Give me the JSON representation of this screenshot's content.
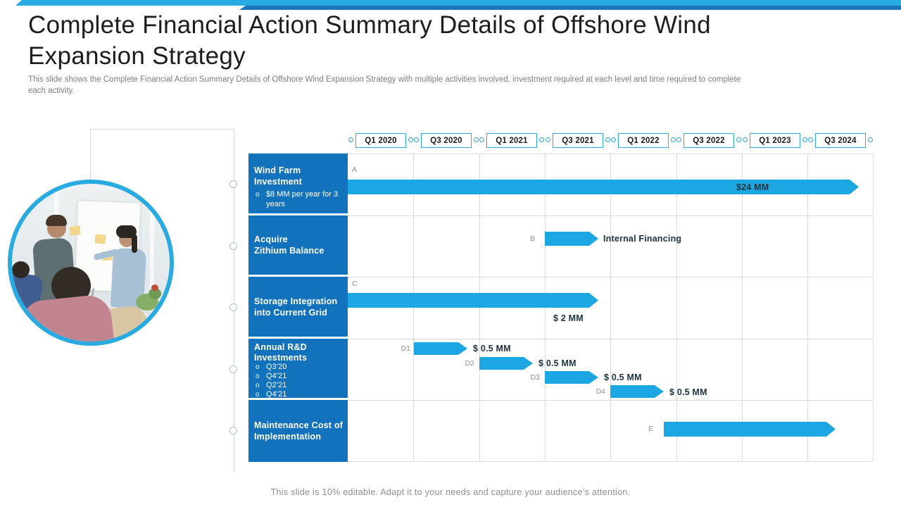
{
  "slide": {
    "title_line1": "Complete Financial Action Summary Details of Offshore Wind",
    "title_line2": "Expansion Strategy",
    "description": "This slide shows the Complete Financial Action Summary Details of Offshore Wind Expansion Strategy with multiple activities involved, investment required at each level and time required to complete each activity.",
    "footer_note": "This slide is 10% editable. Adapt it to your needs and capture your audience’s attention."
  },
  "colors": {
    "accent_cyan": "#29ABE2",
    "accent_dark_blue": "#1B75BB",
    "row_label_blue": "#1273BC",
    "bar_cyan": "#1CA7E2",
    "grid_gray": "#D9D9D9",
    "value_text_dark": "#1D3240",
    "muted_gray": "#7E7E7E"
  },
  "gantt": {
    "bullet_marker": "o",
    "quarters": [
      "Q1 2020",
      "Q3 2020",
      "Q1 2021",
      "Q3 2021",
      "Q1 2022",
      "Q3 2022",
      "Q1 2023",
      "Q3 2024"
    ],
    "rows": [
      {
        "title": "Wind Farm\nInvestment",
        "bullets": [
          "$8 MM  per year for 3 years"
        ]
      },
      {
        "title": "Acquire\nZithium Balance",
        "bullets": []
      },
      {
        "title": "Storage Integration\ninto Current Grid",
        "bullets": []
      },
      {
        "title": "Annual R&D\nInvestments",
        "bullets": [
          "Q3’20",
          "Q4’21",
          "Q2’21",
          "Q4’21"
        ]
      },
      {
        "title": "Maintenance Cost of\nImplementation",
        "bullets": []
      }
    ],
    "bars": [
      {
        "marker": "A",
        "value": "$24 MM"
      },
      {
        "marker": "B",
        "value": "Internal Financing"
      },
      {
        "marker": "C",
        "value": "$ 2 MM"
      },
      {
        "marker": "D1",
        "value": "$ 0.5 MM"
      },
      {
        "marker": "D2",
        "value": "$ 0.5 MM"
      },
      {
        "marker": "D3",
        "value": "$ 0.5 MM"
      },
      {
        "marker": "D4",
        "value": "$ 0.5 MM"
      },
      {
        "marker": "E",
        "value": ""
      }
    ]
  },
  "chart_data": {
    "type": "bar",
    "subtype": "gantt",
    "title": "Complete Financial Action Summary Details of Offshore Wind Expansion Strategy",
    "x_axis_quarters": [
      "Q1 2020",
      "Q3 2020",
      "Q1 2021",
      "Q3 2021",
      "Q1 2022",
      "Q3 2022",
      "Q1 2023",
      "Q3 2024"
    ],
    "tasks": [
      {
        "activity": "Wind Farm Investment ($8 MM per year for 3 years)",
        "marker": "A",
        "span": [
          "Q1 2020",
          "Q3 2024"
        ],
        "label": "$24 MM"
      },
      {
        "activity": "Acquire Zithium Balance",
        "marker": "B",
        "span": [
          "Q3 2021",
          "Q3 2021"
        ],
        "label": "Internal Financing"
      },
      {
        "activity": "Storage Integration into Current Grid",
        "marker": "C",
        "span": [
          "Q1 2020",
          "Q3 2021"
        ],
        "label": "$ 2 MM"
      },
      {
        "activity": "Annual R&D Investments",
        "marker": "D1",
        "span": [
          "Q3 2020",
          "Q3 2020"
        ],
        "label": "$ 0.5 MM"
      },
      {
        "activity": "Annual R&D Investments",
        "marker": "D2",
        "span": [
          "Q1 2021",
          "Q1 2021"
        ],
        "label": "$ 0.5 MM"
      },
      {
        "activity": "Annual R&D Investments",
        "marker": "D3",
        "span": [
          "Q3 2021",
          "Q3 2021"
        ],
        "label": "$ 0.5 MM"
      },
      {
        "activity": "Annual R&D Investments",
        "marker": "D4",
        "span": [
          "Q1 2022",
          "Q1 2022"
        ],
        "label": "$ 0.5 MM"
      },
      {
        "activity": "Maintenance Cost of Implementation",
        "marker": "E",
        "span": [
          "Q3 2022",
          "Q1 2023"
        ],
        "label": ""
      }
    ]
  }
}
